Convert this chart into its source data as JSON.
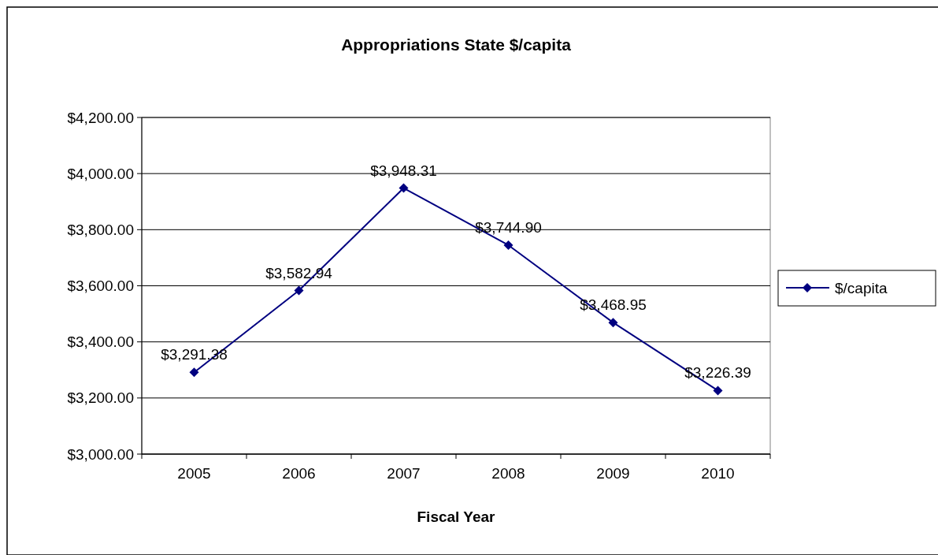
{
  "chart_data": {
    "type": "line",
    "title": "Appropriations State $/capita",
    "xlabel": "Fiscal Year",
    "categories": [
      "2005",
      "2006",
      "2007",
      "2008",
      "2009",
      "2010"
    ],
    "series": [
      {
        "name": "$/capita",
        "color": "#000080",
        "values": [
          3291.38,
          3582.94,
          3948.31,
          3744.9,
          3468.95,
          3226.39
        ],
        "value_labels": [
          "$3,291.38",
          "$3,582.94",
          "$3,948.31",
          "$3,744.90",
          "$3,468.95",
          "$3,226.39"
        ]
      }
    ],
    "ylim": [
      3000,
      4200
    ],
    "yticks": [
      {
        "value": 3000,
        "label": "$3,000.00"
      },
      {
        "value": 3200,
        "label": "$3,200.00"
      },
      {
        "value": 3400,
        "label": "$3,400.00"
      },
      {
        "value": 3600,
        "label": "$3,600.00"
      },
      {
        "value": 3800,
        "label": "$3,800.00"
      },
      {
        "value": 4000,
        "label": "$4,000.00"
      },
      {
        "value": 4200,
        "label": "$4,200.00"
      }
    ],
    "grid": "y",
    "legend": "right",
    "marker": "diamond",
    "line_style": "solid"
  }
}
